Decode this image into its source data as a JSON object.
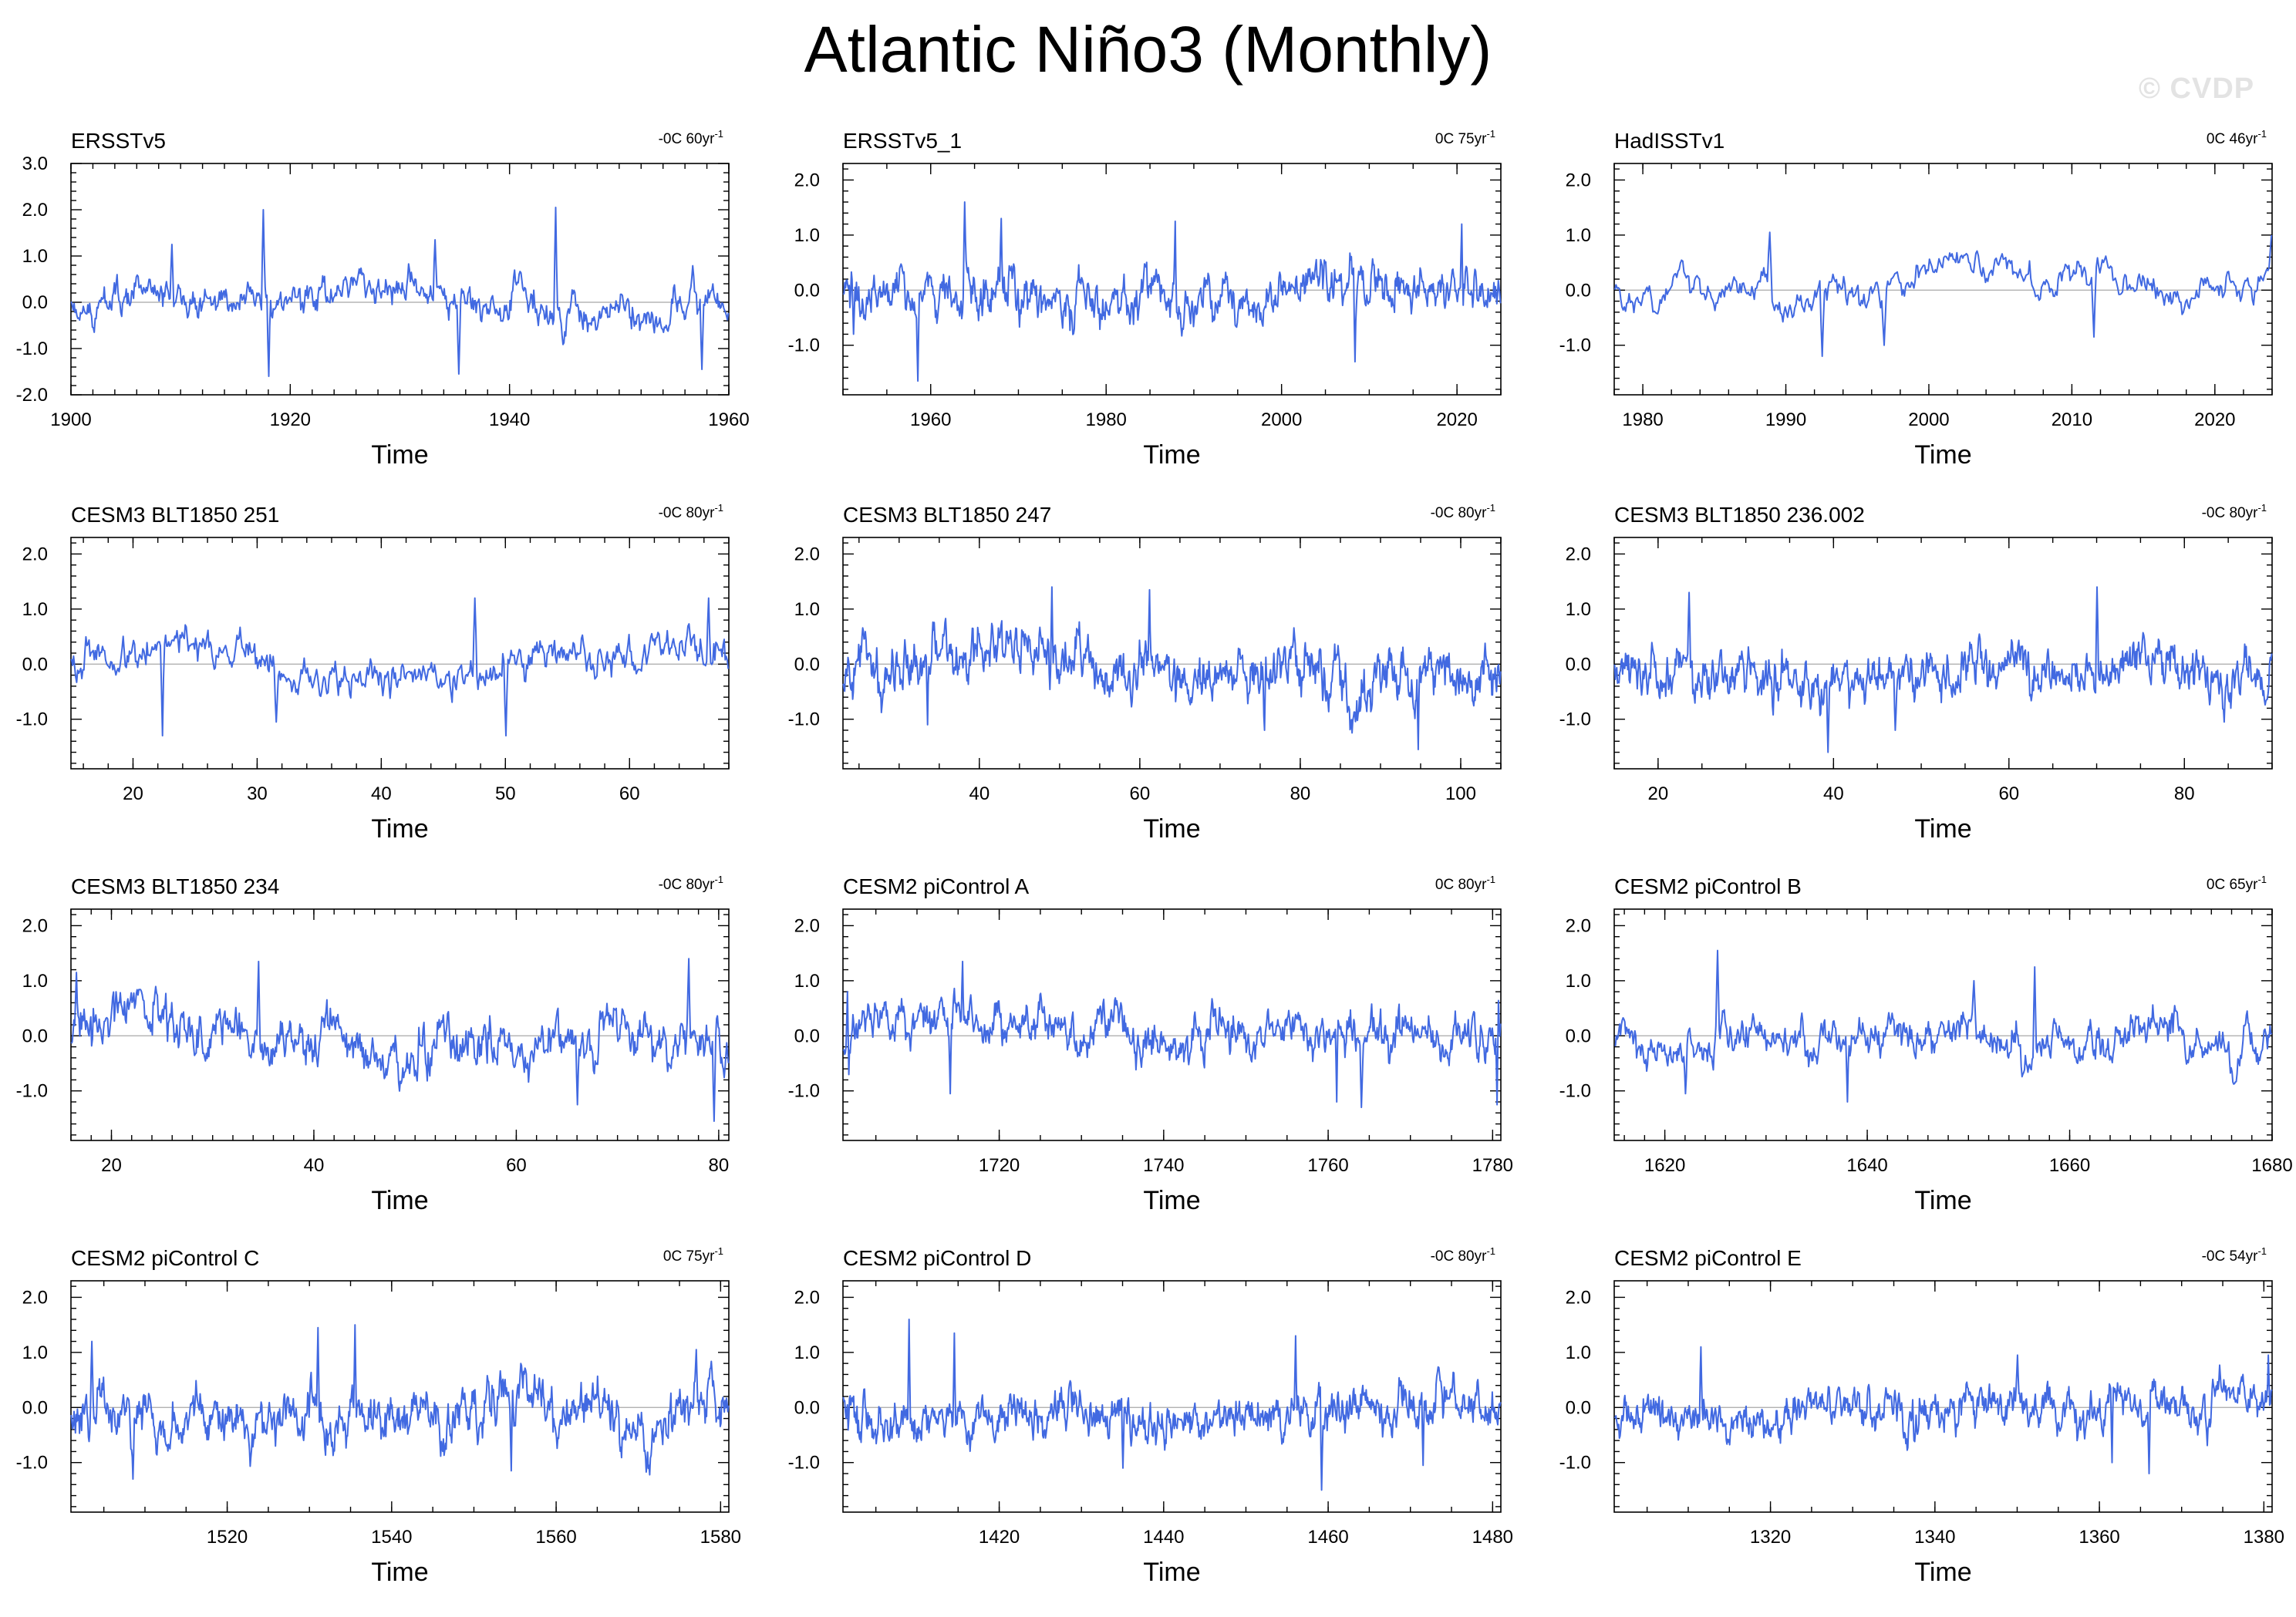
{
  "figure": {
    "title": "Atlantic Niño3 (Monthly)",
    "watermark": "© CVDP",
    "line_color": "#4169e1",
    "zero_line_color": "#a8a8a8"
  },
  "chart_data": [
    {
      "type": "line",
      "title": "ERSSTv5",
      "trend": "-0C 60yr",
      "trend_unit": "-1",
      "xlabel": "Time",
      "xlim": [
        1900,
        1960
      ],
      "xticks": [
        1900,
        1920,
        1940,
        1960
      ],
      "ylim": [
        -2,
        3
      ],
      "yticks": [
        "-2.0",
        "-1.0",
        "0.0",
        "1.0",
        "2.0",
        "3.0"
      ],
      "amp": 0.42,
      "lf": 0.55,
      "seed": 11,
      "peaks": [
        [
          1917.5,
          2.0
        ],
        [
          1918.0,
          -1.6
        ],
        [
          1944.2,
          2.05
        ],
        [
          1935.3,
          -1.55
        ],
        [
          1957.5,
          -1.45
        ],
        [
          1933.2,
          1.35
        ],
        [
          1909.2,
          1.25
        ]
      ]
    },
    {
      "type": "line",
      "title": "ERSSTv5_1",
      "trend": "0C 75yr",
      "trend_unit": "-1",
      "xlabel": "Time",
      "xlim": [
        1950,
        2025
      ],
      "xticks": [
        1960,
        1980,
        2000,
        2020
      ],
      "ylim": [
        -1.9,
        2.3
      ],
      "yticks": [
        "-1.0",
        "0.0",
        "1.0",
        "2.0"
      ],
      "amp": 0.45,
      "lf": 0.5,
      "seed": 22,
      "peaks": [
        [
          1963.8,
          1.6
        ],
        [
          1958.5,
          -1.65
        ],
        [
          1968.0,
          1.3
        ],
        [
          1987.8,
          1.25
        ],
        [
          2008.3,
          -1.3
        ],
        [
          2020.5,
          1.2
        ],
        [
          1951.2,
          -0.8
        ]
      ]
    },
    {
      "type": "line",
      "title": "HadISSTv1",
      "trend": "0C 46yr",
      "trend_unit": "-1",
      "xlabel": "Time",
      "xlim": [
        1978,
        2024
      ],
      "xticks": [
        1980,
        1990,
        2000,
        2010,
        2020
      ],
      "ylim": [
        -1.9,
        2.3
      ],
      "yticks": [
        "-1.0",
        "0.0",
        "1.0",
        "2.0"
      ],
      "amp": 0.36,
      "lf": 0.6,
      "seed": 33,
      "peaks": [
        [
          1992.5,
          -1.2
        ],
        [
          1996.8,
          -1.0
        ],
        [
          2023.9,
          1.0
        ],
        [
          1988.8,
          1.05
        ],
        [
          2011.5,
          -0.85
        ]
      ]
    },
    {
      "type": "line",
      "title": "CESM3 BLT1850 251",
      "trend": "-0C 80yr",
      "trend_unit": "-1",
      "xlabel": "Time",
      "xlim": [
        15,
        68
      ],
      "xticks": [
        20,
        30,
        40,
        50,
        60
      ],
      "ylim": [
        -1.9,
        2.3
      ],
      "yticks": [
        "-1.0",
        "0.0",
        "1.0",
        "2.0"
      ],
      "amp": 0.4,
      "lf": 0.55,
      "seed": 44,
      "peaks": [
        [
          22.3,
          -1.3
        ],
        [
          47.5,
          1.2
        ],
        [
          50.0,
          -1.3
        ],
        [
          66.3,
          1.2
        ],
        [
          31.5,
          -1.05
        ]
      ]
    },
    {
      "type": "line",
      "title": "CESM3 BLT1850 247",
      "trend": "-0C 80yr",
      "trend_unit": "-1",
      "xlabel": "Time",
      "xlim": [
        23,
        105
      ],
      "xticks": [
        40,
        60,
        80,
        100
      ],
      "ylim": [
        -1.9,
        2.3
      ],
      "yticks": [
        "-1.0",
        "0.0",
        "1.0",
        "2.0"
      ],
      "amp": 0.45,
      "lf": 0.45,
      "seed": 55,
      "peaks": [
        [
          49.0,
          1.4
        ],
        [
          94.7,
          -1.55
        ],
        [
          61.2,
          1.35
        ],
        [
          75.5,
          -1.2
        ],
        [
          33.5,
          -1.1
        ]
      ]
    },
    {
      "type": "line",
      "title": "CESM3 BLT1850 236.002",
      "trend": "-0C 80yr",
      "trend_unit": "-1",
      "xlabel": "Time",
      "xlim": [
        15,
        90
      ],
      "xticks": [
        20,
        40,
        60,
        80
      ],
      "ylim": [
        -1.9,
        2.3
      ],
      "yticks": [
        "-1.0",
        "0.0",
        "1.0",
        "2.0"
      ],
      "amp": 0.45,
      "lf": 0.45,
      "seed": 66,
      "peaks": [
        [
          39.3,
          -1.6
        ],
        [
          70.0,
          1.4
        ],
        [
          23.5,
          1.3
        ],
        [
          47.0,
          -1.2
        ],
        [
          84.5,
          -1.05
        ]
      ]
    },
    {
      "type": "line",
      "title": "CESM3 BLT1850 234",
      "trend": "-0C 80yr",
      "trend_unit": "-1",
      "xlabel": "Time",
      "xlim": [
        16,
        81
      ],
      "xticks": [
        20,
        40,
        60,
        80
      ],
      "ylim": [
        -1.9,
        2.3
      ],
      "yticks": [
        "-1.0",
        "0.0",
        "1.0",
        "2.0"
      ],
      "amp": 0.45,
      "lf": 0.45,
      "seed": 77,
      "peaks": [
        [
          34.5,
          1.35
        ],
        [
          79.5,
          -1.55
        ],
        [
          77.0,
          1.4
        ],
        [
          66.0,
          -1.25
        ],
        [
          16.5,
          1.15
        ]
      ]
    },
    {
      "type": "line",
      "title": "CESM2 piControl A",
      "trend": "0C 80yr",
      "trend_unit": "-1",
      "xlabel": "Time",
      "xlim": [
        1701,
        1781
      ],
      "xticks": [
        1720,
        1740,
        1760,
        1780
      ],
      "ylim": [
        -1.9,
        2.3
      ],
      "yticks": [
        "-1.0",
        "0.0",
        "1.0",
        "2.0"
      ],
      "amp": 0.4,
      "lf": 0.5,
      "seed": 88,
      "peaks": [
        [
          1715.5,
          1.35
        ],
        [
          1714.0,
          -1.05
        ],
        [
          1761.0,
          -1.2
        ],
        [
          1764.0,
          -1.3
        ],
        [
          1780.5,
          -1.25
        ],
        [
          1701.5,
          0.8
        ]
      ]
    },
    {
      "type": "line",
      "title": "CESM2 piControl B",
      "trend": "0C 65yr",
      "trend_unit": "-1",
      "xlabel": "Time",
      "xlim": [
        1615,
        1680
      ],
      "xticks": [
        1620,
        1640,
        1660,
        1680
      ],
      "ylim": [
        -1.9,
        2.3
      ],
      "yticks": [
        "-1.0",
        "0.0",
        "1.0",
        "2.0"
      ],
      "amp": 0.38,
      "lf": 0.5,
      "seed": 99,
      "peaks": [
        [
          1625.2,
          1.55
        ],
        [
          1638.0,
          -1.2
        ],
        [
          1650.5,
          1.0
        ],
        [
          1656.5,
          1.25
        ],
        [
          1622.0,
          -1.05
        ]
      ]
    },
    {
      "type": "line",
      "title": "CESM2 piControl C",
      "trend": "0C 75yr",
      "trend_unit": "-1",
      "xlabel": "Time",
      "xlim": [
        1501,
        1581
      ],
      "xticks": [
        1520,
        1540,
        1560,
        1580
      ],
      "ylim": [
        -1.9,
        2.3
      ],
      "yticks": [
        "-1.0",
        "0.0",
        "1.0",
        "2.0"
      ],
      "amp": 0.45,
      "lf": 0.45,
      "seed": 111,
      "peaks": [
        [
          1531.0,
          1.45
        ],
        [
          1535.5,
          1.5
        ],
        [
          1508.5,
          -1.3
        ],
        [
          1554.5,
          -1.15
        ],
        [
          1503.5,
          1.2
        ],
        [
          1577.0,
          1.05
        ]
      ]
    },
    {
      "type": "line",
      "title": "CESM2 piControl D",
      "trend": "-0C 80yr",
      "trend_unit": "-1",
      "xlabel": "Time",
      "xlim": [
        1401,
        1481
      ],
      "xticks": [
        1420,
        1440,
        1460,
        1480
      ],
      "ylim": [
        -1.9,
        2.3
      ],
      "yticks": [
        "-1.0",
        "0.0",
        "1.0",
        "2.0"
      ],
      "amp": 0.4,
      "lf": 0.45,
      "seed": 122,
      "peaks": [
        [
          1409.0,
          1.6
        ],
        [
          1459.2,
          -1.5
        ],
        [
          1414.5,
          1.35
        ],
        [
          1456.0,
          1.3
        ],
        [
          1435.0,
          -1.1
        ],
        [
          1471.5,
          -1.05
        ]
      ]
    },
    {
      "type": "line",
      "title": "CESM2 piControl E",
      "trend": "-0C 54yr",
      "trend_unit": "-1",
      "xlabel": "Time",
      "xlim": [
        1301,
        1381
      ],
      "xticks": [
        1320,
        1340,
        1360,
        1380
      ],
      "ylim": [
        -1.9,
        2.3
      ],
      "yticks": [
        "-1.0",
        "0.0",
        "1.0",
        "2.0"
      ],
      "amp": 0.4,
      "lf": 0.5,
      "seed": 133,
      "peaks": [
        [
          1366.0,
          -1.2
        ],
        [
          1380.5,
          0.95
        ],
        [
          1311.5,
          1.1
        ],
        [
          1361.5,
          -1.0
        ],
        [
          1350.0,
          0.95
        ]
      ]
    }
  ]
}
